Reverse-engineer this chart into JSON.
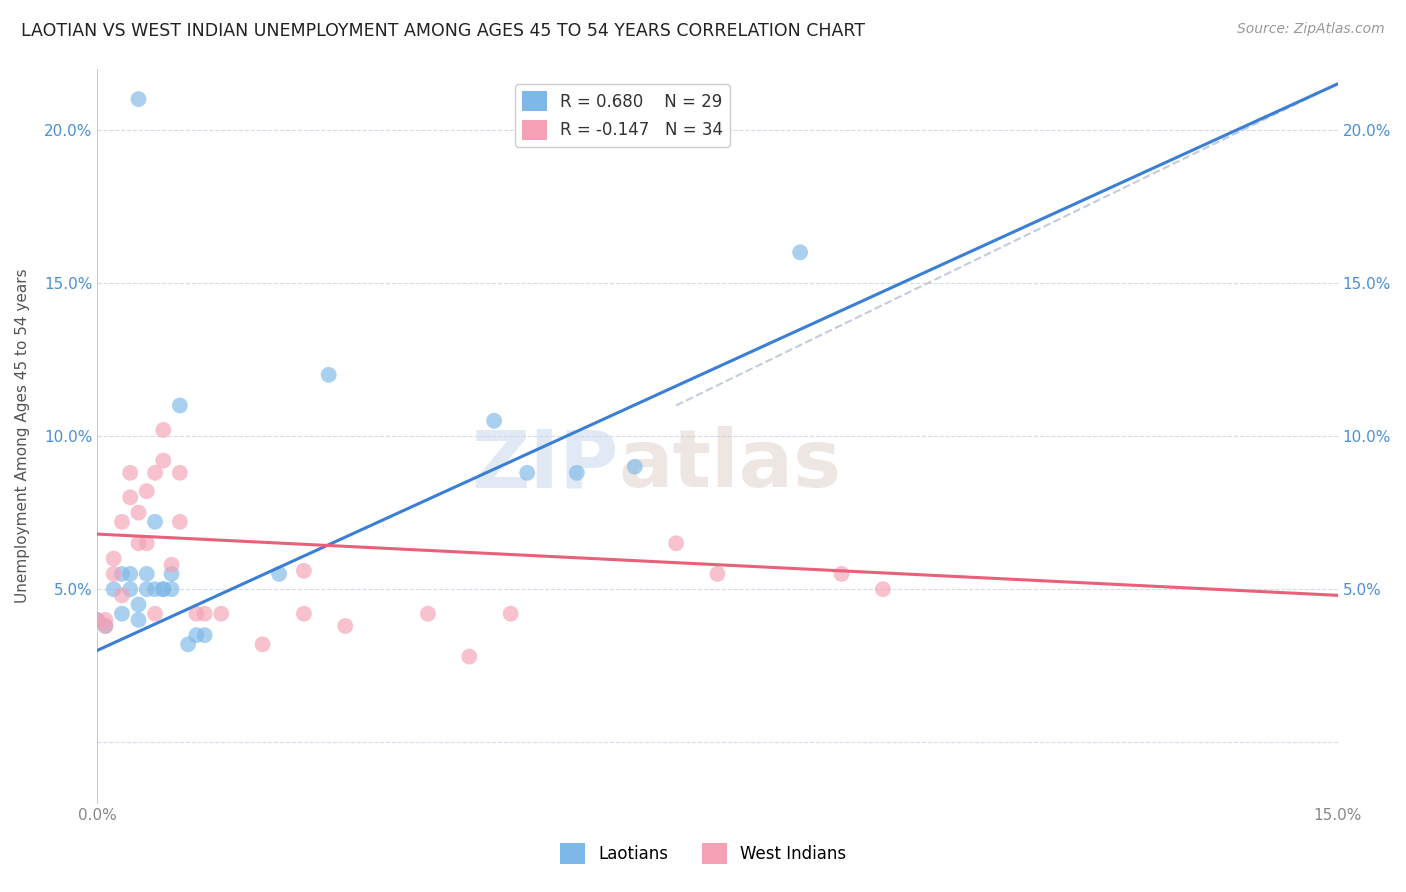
{
  "title": "LAOTIAN VS WEST INDIAN UNEMPLOYMENT AMONG AGES 45 TO 54 YEARS CORRELATION CHART",
  "source": "Source: ZipAtlas.com",
  "ylabel": "Unemployment Among Ages 45 to 54 years",
  "xlim": [
    0.0,
    0.15
  ],
  "ylim": [
    -0.02,
    0.22
  ],
  "ytick_vals": [
    0.0,
    0.05,
    0.1,
    0.15,
    0.2
  ],
  "ytick_labels": [
    "",
    "5.0%",
    "10.0%",
    "15.0%",
    "20.0%"
  ],
  "xtick_vals": [
    0.0,
    0.025,
    0.05,
    0.075,
    0.1,
    0.125,
    0.15
  ],
  "xtick_labels": [
    "0.0%",
    "",
    "",
    "",
    "",
    "",
    "15.0%"
  ],
  "laotian_R": "0.680",
  "laotian_N": 29,
  "west_indian_R": "-0.147",
  "west_indian_N": 34,
  "laotian_color": "#7db8e8",
  "west_indian_color": "#f4a0b5",
  "trendline_laotian_color": "#3a7fd4",
  "trendline_west_indian_color": "#e8607a",
  "trendline_dashed_color": "#b8c4d8",
  "watermark_zip": "ZIP",
  "watermark_atlas": "atlas",
  "lao_trend_x": [
    0.0,
    0.15
  ],
  "lao_trend_y": [
    0.03,
    0.215
  ],
  "wi_trend_x": [
    0.0,
    0.15
  ],
  "wi_trend_y": [
    0.068,
    0.048
  ],
  "dash_trend_x": [
    0.07,
    0.15
  ],
  "dash_trend_y": [
    0.11,
    0.215
  ],
  "laotian_scatter": [
    [
      0.0,
      0.04
    ],
    [
      0.001,
      0.038
    ],
    [
      0.002,
      0.05
    ],
    [
      0.003,
      0.055
    ],
    [
      0.003,
      0.042
    ],
    [
      0.004,
      0.05
    ],
    [
      0.004,
      0.055
    ],
    [
      0.005,
      0.04
    ],
    [
      0.005,
      0.045
    ],
    [
      0.006,
      0.05
    ],
    [
      0.006,
      0.055
    ],
    [
      0.007,
      0.072
    ],
    [
      0.007,
      0.05
    ],
    [
      0.008,
      0.05
    ],
    [
      0.008,
      0.05
    ],
    [
      0.009,
      0.055
    ],
    [
      0.009,
      0.05
    ],
    [
      0.01,
      0.11
    ],
    [
      0.011,
      0.032
    ],
    [
      0.012,
      0.035
    ],
    [
      0.013,
      0.035
    ],
    [
      0.022,
      0.055
    ],
    [
      0.028,
      0.12
    ],
    [
      0.048,
      0.105
    ],
    [
      0.052,
      0.088
    ],
    [
      0.058,
      0.088
    ],
    [
      0.065,
      0.09
    ],
    [
      0.085,
      0.16
    ],
    [
      0.005,
      0.21
    ]
  ],
  "west_indian_scatter": [
    [
      0.0,
      0.04
    ],
    [
      0.001,
      0.038
    ],
    [
      0.001,
      0.04
    ],
    [
      0.002,
      0.055
    ],
    [
      0.002,
      0.06
    ],
    [
      0.003,
      0.048
    ],
    [
      0.003,
      0.072
    ],
    [
      0.004,
      0.08
    ],
    [
      0.004,
      0.088
    ],
    [
      0.005,
      0.075
    ],
    [
      0.005,
      0.065
    ],
    [
      0.006,
      0.065
    ],
    [
      0.006,
      0.082
    ],
    [
      0.007,
      0.042
    ],
    [
      0.007,
      0.088
    ],
    [
      0.008,
      0.092
    ],
    [
      0.008,
      0.102
    ],
    [
      0.009,
      0.058
    ],
    [
      0.01,
      0.072
    ],
    [
      0.01,
      0.088
    ],
    [
      0.012,
      0.042
    ],
    [
      0.013,
      0.042
    ],
    [
      0.015,
      0.042
    ],
    [
      0.02,
      0.032
    ],
    [
      0.025,
      0.056
    ],
    [
      0.025,
      0.042
    ],
    [
      0.03,
      0.038
    ],
    [
      0.04,
      0.042
    ],
    [
      0.045,
      0.028
    ],
    [
      0.05,
      0.042
    ],
    [
      0.07,
      0.065
    ],
    [
      0.075,
      0.055
    ],
    [
      0.09,
      0.055
    ],
    [
      0.095,
      0.05
    ]
  ]
}
